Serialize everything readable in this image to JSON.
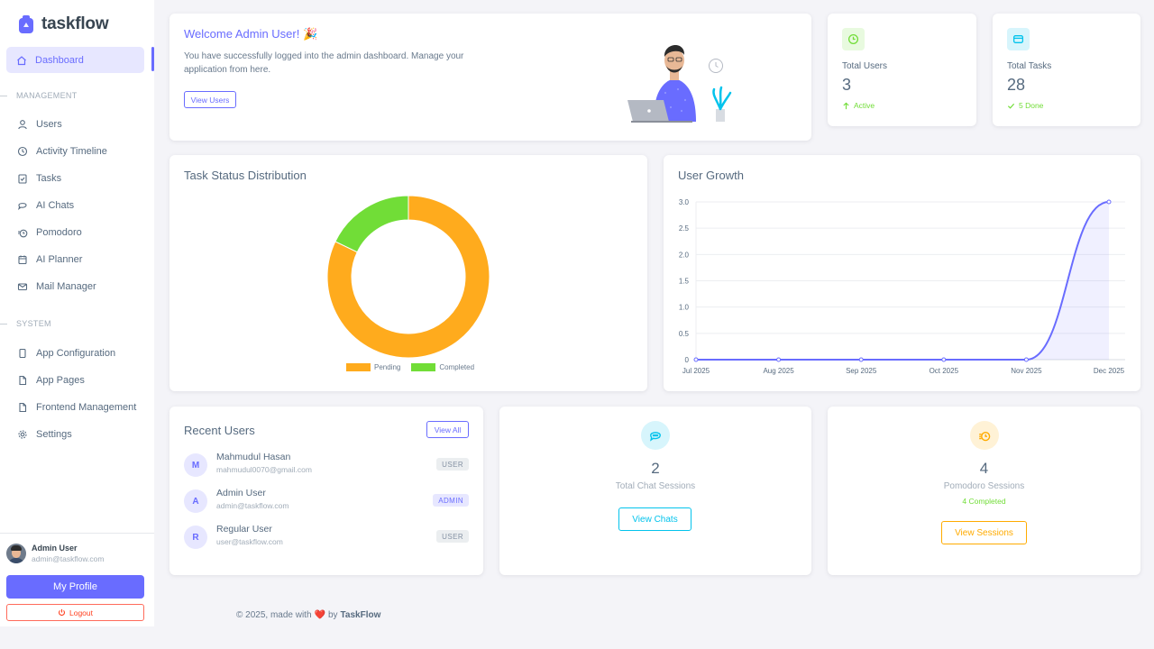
{
  "sidebar": {
    "brand": "taskflow",
    "active_item": "Dashboard",
    "sections": {
      "management": "MANAGEMENT",
      "system": "SYSTEM"
    },
    "management_items": [
      "Users",
      "Activity Timeline",
      "Tasks",
      "AI Chats",
      "Pomodoro",
      "AI Planner",
      "Mail Manager"
    ],
    "system_items": [
      "App Configuration",
      "App Pages",
      "Frontend Management",
      "Settings"
    ],
    "user": {
      "name": "Admin User",
      "email": "admin@taskflow.com"
    },
    "profile_button": "My Profile",
    "logout_button": "Logout"
  },
  "welcome": {
    "title": "Welcome Admin User! 🎉",
    "text": "You have successfully logged into the admin dashboard. Manage your application from here.",
    "button": "View Users"
  },
  "stats": {
    "users": {
      "label": "Total Users",
      "value": "3",
      "sub": "Active",
      "color": "#71dd37"
    },
    "tasks": {
      "label": "Total Tasks",
      "value": "28",
      "sub": "5 Done",
      "color": "#03c3ec"
    }
  },
  "task_status": {
    "title": "Task Status Distribution",
    "chart_data": {
      "type": "pie",
      "categories": [
        "Pending",
        "Completed"
      ],
      "values": [
        23,
        5
      ],
      "colors": [
        "#ffab1d",
        "#71dd37"
      ],
      "legend": "bottom"
    }
  },
  "user_growth": {
    "title": "User Growth",
    "chart_data": {
      "type": "area",
      "categories": [
        "Jul 2025",
        "Aug 2025",
        "Sep 2025",
        "Oct 2025",
        "Nov 2025",
        "Dec 2025"
      ],
      "values": [
        0,
        0,
        0,
        0,
        0,
        3
      ],
      "y_ticks": [
        "0",
        "0.5",
        "1.0",
        "1.5",
        "2.0",
        "2.5",
        "3.0"
      ],
      "ylim": [
        0,
        3
      ],
      "grid": true,
      "color": "#696cff"
    }
  },
  "recent_users": {
    "title": "Recent Users",
    "button": "View All",
    "items": [
      {
        "initial": "M",
        "name": "Mahmudul Hasan",
        "email": "mahmudul0070@gmail.com",
        "role": "USER"
      },
      {
        "initial": "A",
        "name": "Admin User",
        "email": "admin@taskflow.com",
        "role": "ADMIN"
      },
      {
        "initial": "R",
        "name": "Regular User",
        "email": "user@taskflow.com",
        "role": "USER"
      }
    ]
  },
  "chats": {
    "value": "2",
    "label": "Total Chat Sessions",
    "button": "View Chats",
    "color": "#03c3ec"
  },
  "pomodoro": {
    "value": "4",
    "label": "Pomodoro Sessions",
    "sub": "4 Completed",
    "button": "View Sessions",
    "color": "#ffab00"
  },
  "footer": {
    "prefix": "© 2025, made with",
    "heart": "❤️",
    "by": "by",
    "brand": "TaskFlow"
  }
}
